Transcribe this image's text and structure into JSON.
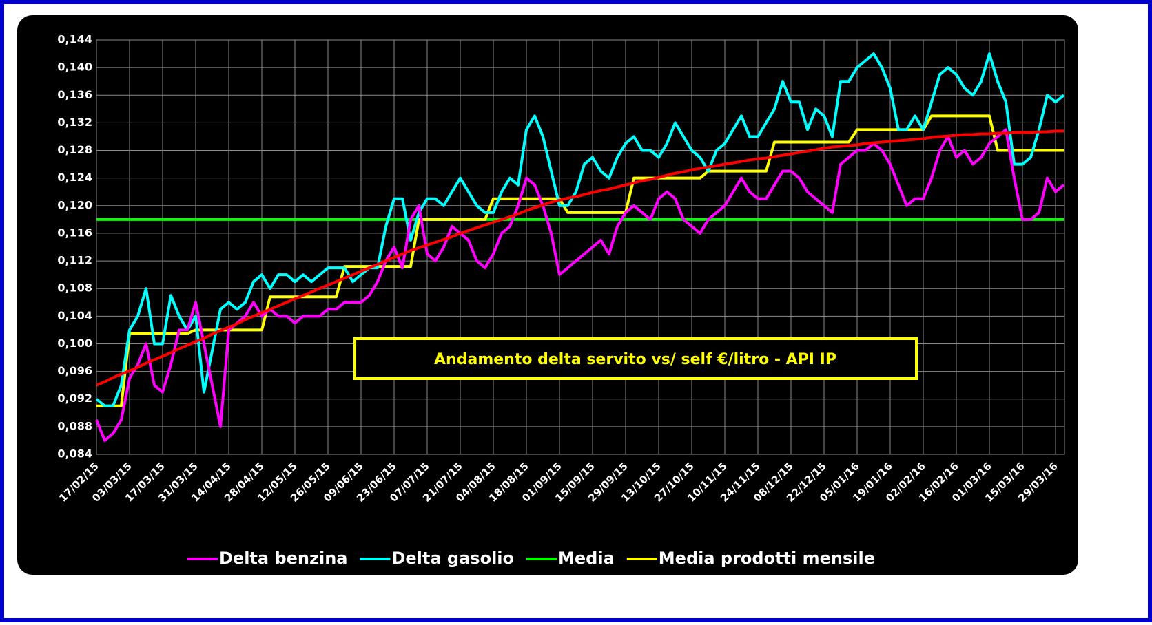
{
  "chart_data": {
    "type": "line",
    "annotation": "Andamento delta servito vs/ self €/litro - API IP",
    "categories": [
      "17/02/15",
      null,
      null,
      null,
      "03/03/15",
      null,
      null,
      null,
      "17/03/15",
      null,
      null,
      null,
      "31/03/15",
      null,
      null,
      null,
      "14/04/15",
      null,
      null,
      null,
      "28/04/15",
      null,
      null,
      null,
      "12/05/15",
      null,
      null,
      null,
      "26/05/15",
      null,
      null,
      null,
      "09/06/15",
      null,
      null,
      null,
      "23/06/15",
      null,
      null,
      null,
      "07/07/15",
      null,
      null,
      null,
      "21/07/15",
      null,
      null,
      null,
      "04/08/15",
      null,
      null,
      null,
      "18/08/15",
      null,
      null,
      null,
      "01/09/15",
      null,
      null,
      null,
      "15/09/15",
      null,
      null,
      null,
      "29/09/15",
      null,
      null,
      null,
      "13/10/15",
      null,
      null,
      null,
      "27/10/15",
      null,
      null,
      null,
      "10/11/15",
      null,
      null,
      null,
      "24/11/15",
      null,
      null,
      null,
      "08/12/15",
      null,
      null,
      null,
      "22/12/15",
      null,
      null,
      null,
      "05/01/16",
      null,
      null,
      null,
      "19/01/16",
      null,
      null,
      null,
      "02/02/16",
      null,
      null,
      null,
      "16/02/16",
      null,
      null,
      null,
      "01/03/16",
      null,
      null,
      null,
      "15/03/16",
      null,
      null,
      null,
      "29/03/16",
      null
    ],
    "series": [
      {
        "name": "Delta benzina",
        "color": "#ff00ff",
        "values": [
          0.089,
          0.086,
          0.087,
          0.089,
          0.095,
          0.097,
          0.1,
          0.094,
          0.093,
          0.097,
          0.102,
          0.102,
          0.106,
          0.1,
          0.094,
          0.088,
          0.102,
          0.103,
          0.104,
          0.106,
          0.104,
          0.105,
          0.104,
          0.104,
          0.103,
          0.104,
          0.104,
          0.104,
          0.105,
          0.105,
          0.106,
          0.106,
          0.106,
          0.107,
          0.109,
          0.112,
          0.114,
          0.111,
          0.118,
          0.12,
          0.113,
          0.112,
          0.114,
          0.117,
          0.116,
          0.115,
          0.112,
          0.111,
          0.113,
          0.116,
          0.117,
          0.12,
          0.124,
          0.123,
          0.12,
          0.116,
          0.11,
          0.111,
          0.112,
          0.113,
          0.114,
          0.115,
          0.113,
          0.117,
          0.119,
          0.12,
          0.119,
          0.118,
          0.121,
          0.122,
          0.121,
          0.118,
          0.117,
          0.116,
          0.118,
          0.119,
          0.12,
          0.122,
          0.124,
          0.122,
          0.121,
          0.121,
          0.123,
          0.125,
          0.125,
          0.124,
          0.122,
          0.121,
          0.12,
          0.119,
          0.126,
          0.127,
          0.128,
          0.128,
          0.129,
          0.128,
          0.126,
          0.123,
          0.12,
          0.121,
          0.121,
          0.124,
          0.128,
          0.13,
          0.127,
          0.128,
          0.126,
          0.127,
          0.129,
          0.13,
          0.131,
          0.124,
          0.118,
          0.118,
          0.119,
          0.124,
          0.122,
          0.123
        ]
      },
      {
        "name": "Delta gasolio",
        "color": "#00ffff",
        "values": [
          0.092,
          0.091,
          0.091,
          0.094,
          0.102,
          0.104,
          0.108,
          0.1,
          0.1,
          0.107,
          0.104,
          0.102,
          0.104,
          0.093,
          0.099,
          0.105,
          0.106,
          0.105,
          0.106,
          0.109,
          0.11,
          0.108,
          0.11,
          0.11,
          0.109,
          0.11,
          0.109,
          0.11,
          0.111,
          0.111,
          0.111,
          0.109,
          0.11,
          0.111,
          0.111,
          0.117,
          0.121,
          0.121,
          0.115,
          0.119,
          0.121,
          0.121,
          0.12,
          0.122,
          0.124,
          0.122,
          0.12,
          0.119,
          0.119,
          0.122,
          0.124,
          0.123,
          0.131,
          0.133,
          0.13,
          0.125,
          0.12,
          0.12,
          0.122,
          0.126,
          0.127,
          0.125,
          0.124,
          0.127,
          0.129,
          0.13,
          0.128,
          0.128,
          0.127,
          0.129,
          0.132,
          0.13,
          0.128,
          0.127,
          0.125,
          0.128,
          0.129,
          0.131,
          0.133,
          0.13,
          0.13,
          0.132,
          0.134,
          0.138,
          0.135,
          0.135,
          0.131,
          0.134,
          0.133,
          0.13,
          0.138,
          0.138,
          0.14,
          0.141,
          0.142,
          0.14,
          0.137,
          0.131,
          0.131,
          0.133,
          0.131,
          0.135,
          0.139,
          0.14,
          0.139,
          0.137,
          0.136,
          0.138,
          0.142,
          0.138,
          0.135,
          0.126,
          0.126,
          0.127,
          0.131,
          0.136,
          0.135,
          0.136
        ]
      },
      {
        "name": "Media",
        "color": "#00ff00",
        "values": [
          0.118,
          0.118,
          0.118,
          0.118,
          0.118,
          0.118,
          0.118,
          0.118,
          0.118,
          0.118,
          0.118,
          0.118,
          0.118,
          0.118,
          0.118,
          0.118,
          0.118,
          0.118,
          0.118,
          0.118,
          0.118,
          0.118,
          0.118,
          0.118,
          0.118,
          0.118,
          0.118,
          0.118,
          0.118,
          0.118,
          0.118,
          0.118,
          0.118,
          0.118,
          0.118,
          0.118,
          0.118,
          0.118,
          0.118,
          0.118,
          0.118,
          0.118,
          0.118,
          0.118,
          0.118,
          0.118,
          0.118,
          0.118,
          0.118,
          0.118,
          0.118,
          0.118,
          0.118,
          0.118,
          0.118,
          0.118,
          0.118,
          0.118,
          0.118,
          0.118,
          0.118,
          0.118,
          0.118,
          0.118,
          0.118,
          0.118,
          0.118,
          0.118,
          0.118,
          0.118,
          0.118,
          0.118,
          0.118,
          0.118,
          0.118,
          0.118,
          0.118,
          0.118,
          0.118,
          0.118,
          0.118,
          0.118,
          0.118,
          0.118,
          0.118,
          0.118,
          0.118,
          0.118,
          0.118,
          0.118,
          0.118,
          0.118,
          0.118,
          0.118,
          0.118,
          0.118,
          0.118,
          0.118,
          0.118,
          0.118,
          0.118,
          0.118,
          0.118,
          0.118,
          0.118,
          0.118,
          0.118,
          0.118,
          0.118,
          0.118,
          0.118,
          0.118,
          0.118,
          0.118,
          0.118,
          0.118,
          0.118,
          0.118
        ]
      },
      {
        "name": "Media prodotti mensile",
        "color": "#ffff00",
        "values": [
          0.091,
          0.091,
          0.091,
          0.091,
          0.1015,
          0.1015,
          0.1015,
          0.1015,
          0.1015,
          0.1015,
          0.1015,
          0.1015,
          0.102,
          0.102,
          0.102,
          0.102,
          0.102,
          0.102,
          0.102,
          0.102,
          0.102,
          0.1068,
          0.1068,
          0.1068,
          0.1068,
          0.1068,
          0.1068,
          0.1068,
          0.1068,
          0.1068,
          0.1112,
          0.1112,
          0.1112,
          0.1112,
          0.1112,
          0.1112,
          0.1112,
          0.1112,
          0.1112,
          0.118,
          0.118,
          0.118,
          0.118,
          0.118,
          0.118,
          0.118,
          0.118,
          0.118,
          0.121,
          0.121,
          0.121,
          0.121,
          0.121,
          0.121,
          0.121,
          0.121,
          0.121,
          0.119,
          0.119,
          0.119,
          0.119,
          0.119,
          0.119,
          0.119,
          0.119,
          0.124,
          0.124,
          0.124,
          0.124,
          0.124,
          0.124,
          0.124,
          0.124,
          0.124,
          0.125,
          0.125,
          0.125,
          0.125,
          0.125,
          0.125,
          0.125,
          0.125,
          0.1292,
          0.1292,
          0.1292,
          0.1292,
          0.1292,
          0.1292,
          0.1292,
          0.1292,
          0.1292,
          0.1292,
          0.131,
          0.131,
          0.131,
          0.131,
          0.131,
          0.131,
          0.131,
          0.131,
          0.131,
          0.133,
          0.133,
          0.133,
          0.133,
          0.133,
          0.133,
          0.133,
          0.133,
          0.128,
          0.128,
          0.128,
          0.128,
          0.128,
          0.128,
          0.128,
          0.128,
          0.128
        ]
      },
      {
        "color": "#ff0000",
        "values": [
          0.094,
          0.0945,
          0.0951,
          0.0956,
          0.0961,
          0.0966,
          0.0972,
          0.0977,
          0.0982,
          0.0987,
          0.0993,
          0.0998,
          0.1003,
          0.1008,
          0.1014,
          0.1019,
          0.1024,
          0.1029,
          0.1035,
          0.104,
          0.1045,
          0.105,
          0.1055,
          0.106,
          0.1065,
          0.107,
          0.1075,
          0.108,
          0.1085,
          0.109,
          0.1095,
          0.11,
          0.1105,
          0.111,
          0.1115,
          0.112,
          0.1125,
          0.113,
          0.1135,
          0.1139,
          0.1143,
          0.1147,
          0.1151,
          0.1155,
          0.116,
          0.1164,
          0.1168,
          0.1172,
          0.1176,
          0.118,
          0.1184,
          0.1188,
          0.1193,
          0.1197,
          0.1201,
          0.1205,
          0.1208,
          0.1211,
          0.1213,
          0.1216,
          0.1219,
          0.1222,
          0.1224,
          0.1227,
          0.123,
          0.1233,
          0.1236,
          0.1238,
          0.1241,
          0.1244,
          0.1247,
          0.1249,
          0.1252,
          0.1254,
          0.1256,
          0.1258,
          0.126,
          0.1262,
          0.1264,
          0.1266,
          0.1268,
          0.1269,
          0.1271,
          0.1273,
          0.1275,
          0.1277,
          0.1279,
          0.1281,
          0.1283,
          0.1285,
          0.1286,
          0.1287,
          0.1288,
          0.129,
          0.1291,
          0.1292,
          0.1293,
          0.1294,
          0.1295,
          0.1296,
          0.1297,
          0.1299,
          0.13,
          0.1301,
          0.1302,
          0.1303,
          0.1303,
          0.1304,
          0.1304,
          0.1305,
          0.1305,
          0.1306,
          0.1306,
          0.1306,
          0.1307,
          0.1307,
          0.1308,
          0.1308
        ]
      }
    ],
    "ylim": [
      0.084,
      0.144
    ],
    "yticks": [
      {
        "value": 0.084,
        "label": "0,084"
      },
      {
        "value": 0.088,
        "label": "0,088"
      },
      {
        "value": 0.092,
        "label": "0,092"
      },
      {
        "value": 0.096,
        "label": "0,096"
      },
      {
        "value": 0.1,
        "label": "0,100"
      },
      {
        "value": 0.104,
        "label": "0,104"
      },
      {
        "value": 0.108,
        "label": "0,108"
      },
      {
        "value": 0.112,
        "label": "0,112"
      },
      {
        "value": 0.116,
        "label": "0,116"
      },
      {
        "value": 0.12,
        "label": "0,120"
      },
      {
        "value": 0.124,
        "label": "0,124"
      },
      {
        "value": 0.128,
        "label": "0,128"
      },
      {
        "value": 0.132,
        "label": "0,132"
      },
      {
        "value": 0.136,
        "label": "0,136"
      },
      {
        "value": 0.14,
        "label": "0,140"
      },
      {
        "value": 0.144,
        "label": "0,144"
      }
    ],
    "grid": true,
    "legend": "bottom"
  }
}
